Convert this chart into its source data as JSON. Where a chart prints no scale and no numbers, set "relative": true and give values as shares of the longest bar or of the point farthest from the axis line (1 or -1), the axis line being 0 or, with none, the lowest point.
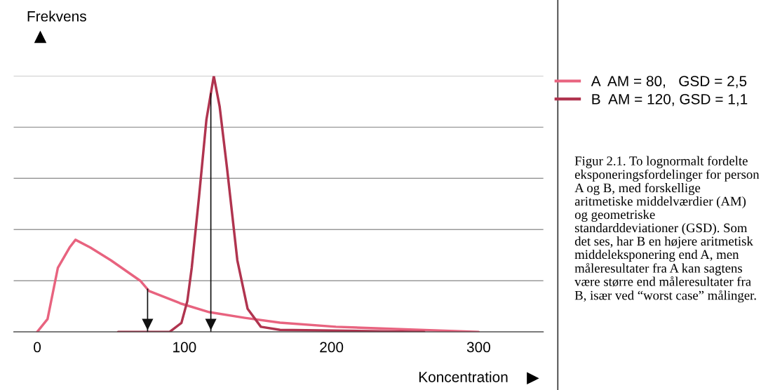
{
  "chart_data": {
    "type": "line",
    "relative": true,
    "xlabel": "Koncentration",
    "ylabel": "Frekvens",
    "xlim": [
      -16,
      344
    ],
    "xticks": [
      0,
      100,
      200,
      300
    ],
    "grid": "y",
    "legend": "top right",
    "marker": "none",
    "line_style": "solid",
    "series": [
      {
        "name": "A  AM = 80,   GSD = 2,5",
        "color": "#e8637f",
        "x": [
          0,
          7,
          14,
          22,
          26,
          36,
          50,
          70,
          76,
          98,
          117,
          141,
          165,
          203,
          260,
          300
        ],
        "values": [
          0,
          0.05,
          0.25,
          0.33,
          0.36,
          0.33,
          0.28,
          0.2,
          0.16,
          0.11,
          0.077,
          0.055,
          0.036,
          0.02,
          0.008,
          0
        ]
      },
      {
        "name": "B  AM = 120, GSD = 1,1",
        "color": "#b0344f",
        "x": [
          55,
          90,
          98,
          102,
          105,
          110,
          115,
          120,
          124,
          129,
          136,
          143,
          152,
          165,
          263
        ],
        "values": [
          0,
          0,
          0.035,
          0.12,
          0.25,
          0.53,
          0.83,
          1,
          0.88,
          0.64,
          0.28,
          0.09,
          0.02,
          0.008,
          0
        ]
      }
    ],
    "ref_lines": [
      {
        "axis": "x",
        "value": 75,
        "color": "#111111"
      },
      {
        "axis": "x",
        "value": 118,
        "color": "#111111"
      }
    ],
    "annotations": [
      "Figur 2.1. To lognormalt fordelte eksponeringsfordelinger for person A og B, med forskellige aritmetiske middelværdier (AM) og geometriske standarddeviationer (GSD). Som det ses, har B en højere aritmetisk middeleksponering end A, men måleresultater fra A kan sagtens være større end måleresultater fra B, især ved “worst case” målinger."
    ]
  }
}
